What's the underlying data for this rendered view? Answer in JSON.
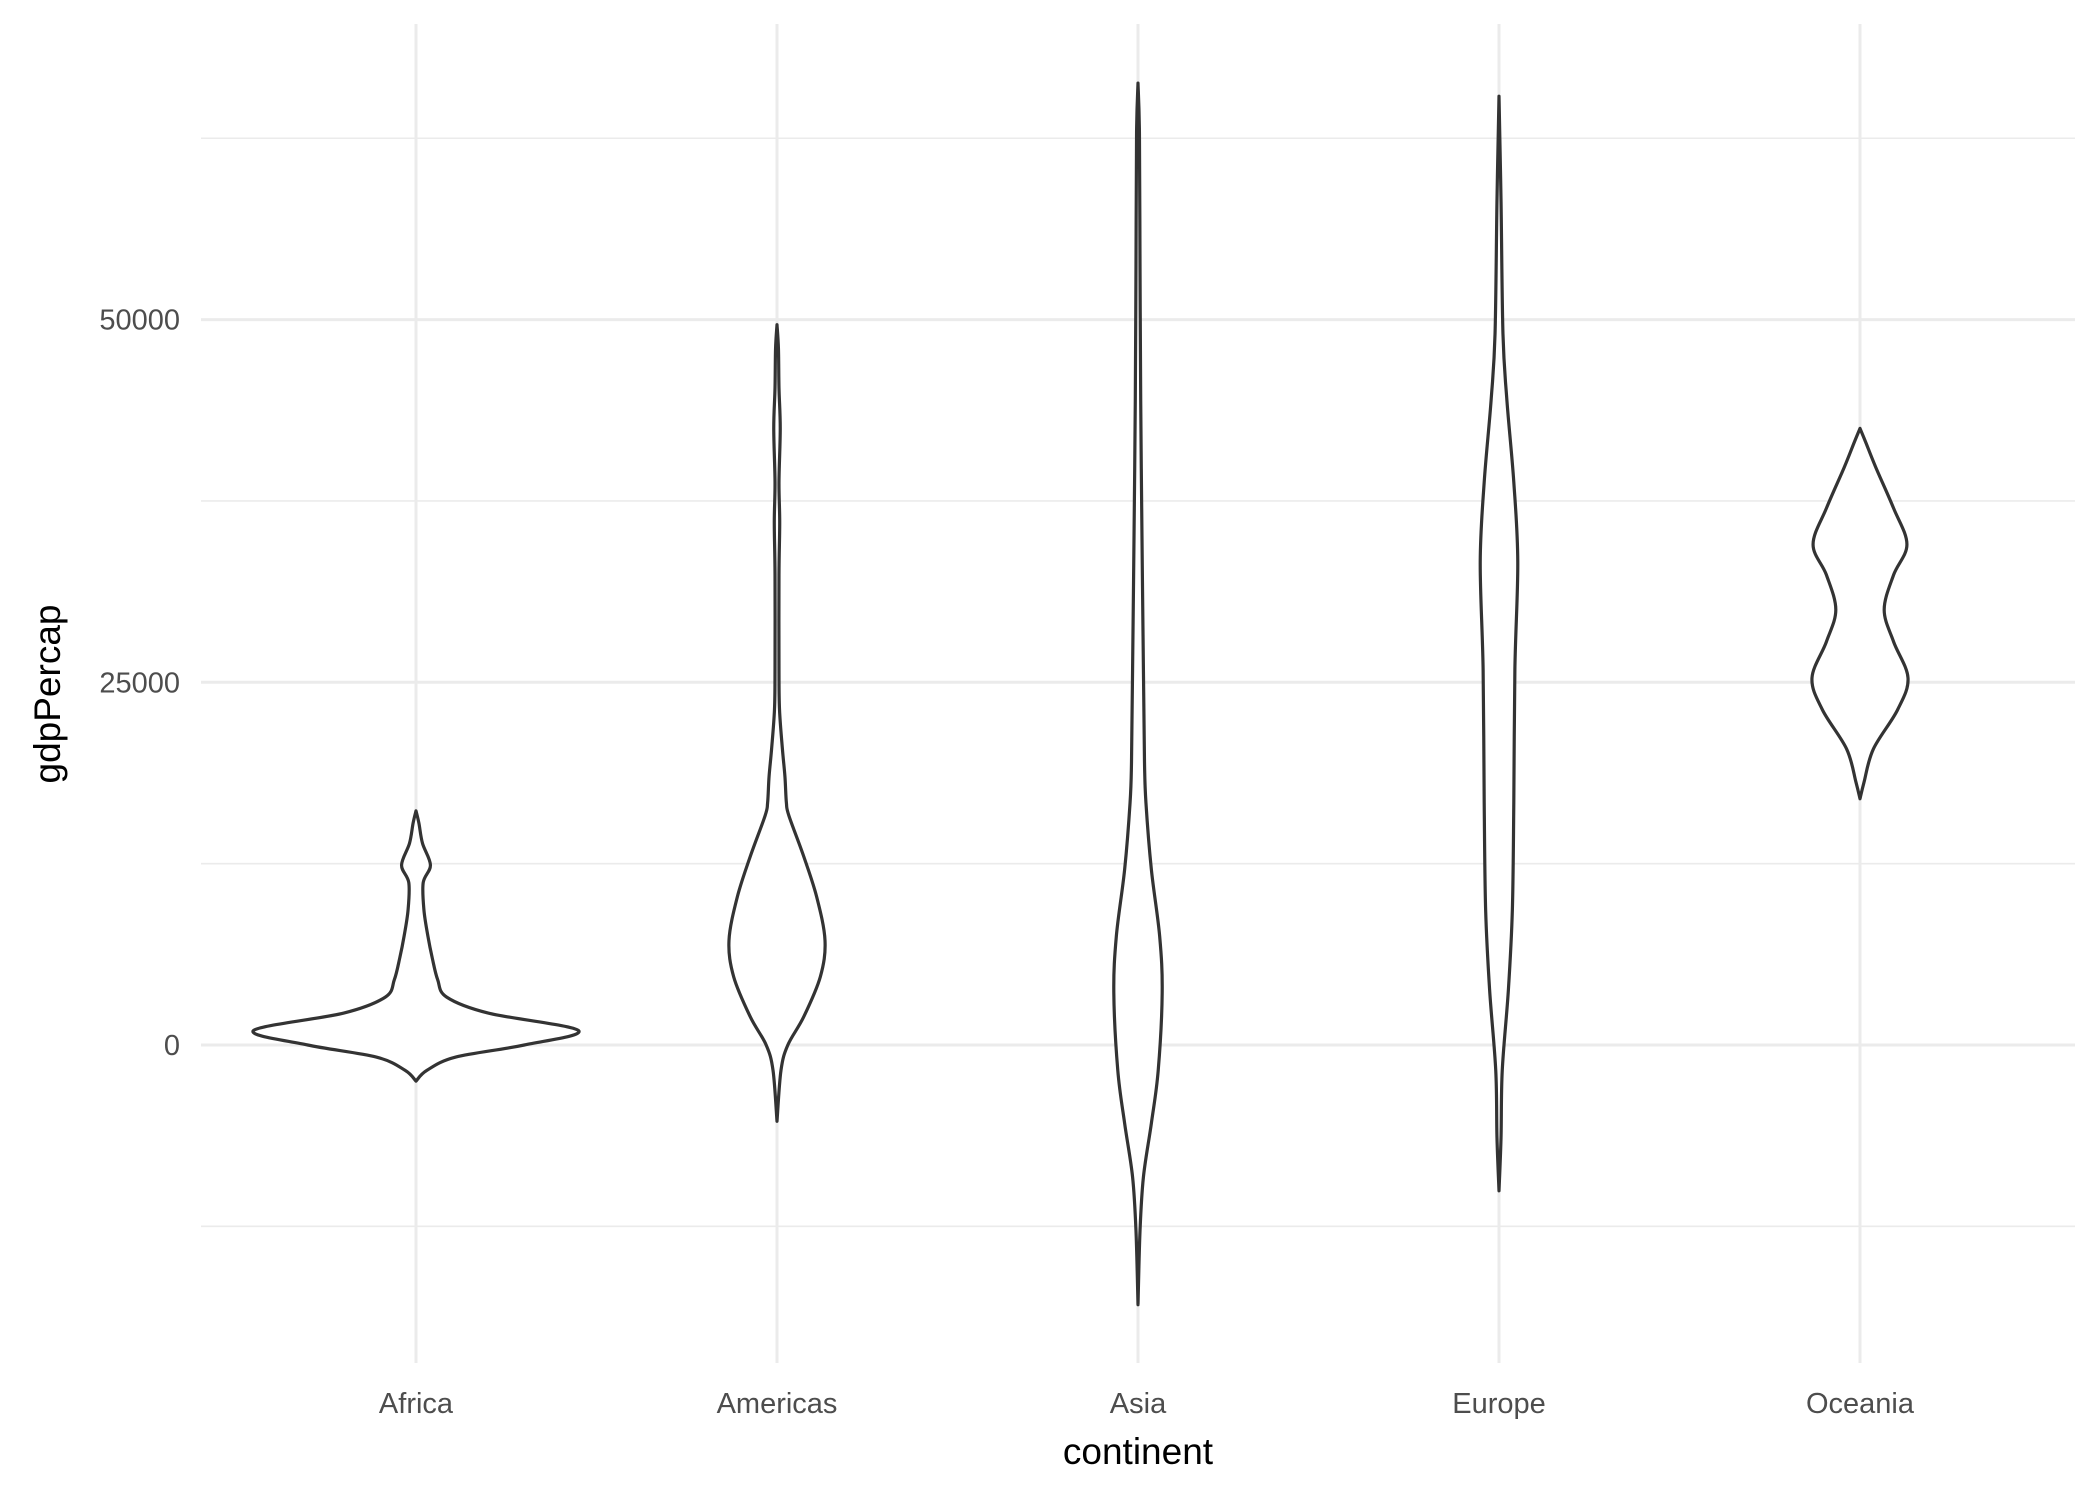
{
  "chart_data": {
    "type": "violin",
    "xlabel": "continent",
    "ylabel": "gdpPercap",
    "categories": [
      "Africa",
      "Americas",
      "Asia",
      "Europe",
      "Oceania"
    ],
    "yticks": [
      0,
      25000,
      50000
    ],
    "ytick_labels": [
      "0",
      "25000",
      "50000"
    ],
    "yminor": [
      -12500,
      12500,
      37500,
      62500
    ],
    "ylim": [
      -21900,
      70400
    ],
    "grid": true,
    "colors": {
      "outline": "#333333",
      "fill": "#ffffff",
      "grid": "#ebebeb",
      "tick_text": "#4d4d4d"
    },
    "series": [
      {
        "category": "Africa",
        "range": [
          -2490,
          16140
        ],
        "density_profile": [
          [
            -2490,
            0
          ],
          [
            -1750,
            0.03
          ],
          [
            -830,
            0.11
          ],
          [
            0,
            0.3
          ],
          [
            1000,
            0.45
          ],
          [
            2200,
            0.2
          ],
          [
            3300,
            0.085
          ],
          [
            4500,
            0.06
          ],
          [
            6000,
            0.045
          ],
          [
            7500,
            0.033
          ],
          [
            9300,
            0.022
          ],
          [
            11200,
            0.02
          ],
          [
            12400,
            0.04
          ],
          [
            13900,
            0.018
          ],
          [
            15300,
            0.008
          ],
          [
            16140,
            0
          ]
        ]
      },
      {
        "category": "Americas",
        "range": [
          -5260,
          49650
        ],
        "density_profile": [
          [
            -5260,
            0
          ],
          [
            -1750,
            0.011
          ],
          [
            0,
            0.03
          ],
          [
            1940,
            0.074
          ],
          [
            4700,
            0.12
          ],
          [
            7200,
            0.133
          ],
          [
            10200,
            0.11
          ],
          [
            13000,
            0.074
          ],
          [
            15800,
            0.033
          ],
          [
            16700,
            0.026
          ],
          [
            18500,
            0.022
          ],
          [
            20400,
            0.015
          ],
          [
            23100,
            0.007
          ],
          [
            25900,
            0.0055
          ],
          [
            32400,
            0.0055
          ],
          [
            36000,
            0.0075
          ],
          [
            38800,
            0.0055
          ],
          [
            42500,
            0.009
          ],
          [
            45300,
            0.0055
          ],
          [
            48000,
            0.004
          ],
          [
            49650,
            0
          ]
        ]
      },
      {
        "category": "Asia",
        "range": [
          -17900,
          66300
        ],
        "density_profile": [
          [
            -17900,
            0
          ],
          [
            -12800,
            0.0056
          ],
          [
            -9100,
            0.015
          ],
          [
            -5400,
            0.037
          ],
          [
            -1750,
            0.056
          ],
          [
            3600,
            0.067
          ],
          [
            7500,
            0.06
          ],
          [
            12100,
            0.037
          ],
          [
            16700,
            0.022
          ],
          [
            19500,
            0.018
          ],
          [
            25900,
            0.015
          ],
          [
            35100,
            0.011
          ],
          [
            44400,
            0.0075
          ],
          [
            53600,
            0.0056
          ],
          [
            62800,
            0.004
          ],
          [
            66300,
            0
          ]
        ]
      },
      {
        "category": "Europe",
        "range": [
          -10050,
          65400
        ],
        "density_profile": [
          [
            -10050,
            0
          ],
          [
            -6400,
            0.0056
          ],
          [
            -1750,
            0.009
          ],
          [
            3800,
            0.026
          ],
          [
            9300,
            0.037
          ],
          [
            16700,
            0.041
          ],
          [
            25900,
            0.044
          ],
          [
            33300,
            0.052
          ],
          [
            38800,
            0.041
          ],
          [
            44400,
            0.022
          ],
          [
            49000,
            0.011
          ],
          [
            58200,
            0.0056
          ],
          [
            65400,
            0
          ]
        ]
      },
      {
        "category": "Oceania",
        "range": [
          16970,
          42500
        ],
        "density_profile": [
          [
            16970,
            0
          ],
          [
            18100,
            0.011
          ],
          [
            20400,
            0.037
          ],
          [
            23100,
            0.104
          ],
          [
            25300,
            0.133
          ],
          [
            27800,
            0.093
          ],
          [
            30000,
            0.067
          ],
          [
            32400,
            0.093
          ],
          [
            34500,
            0.13
          ],
          [
            37000,
            0.093
          ],
          [
            39800,
            0.044
          ],
          [
            41600,
            0.015
          ],
          [
            42500,
            0
          ]
        ]
      }
    ]
  }
}
